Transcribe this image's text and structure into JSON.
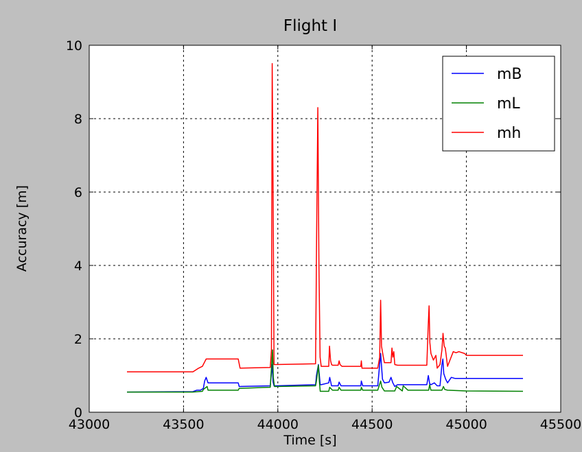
{
  "chart_data": {
    "type": "line",
    "title": "Flight I",
    "xlabel": "Time [s]",
    "ylabel": "Accuracy [m]",
    "xlim": [
      43000,
      45500
    ],
    "ylim": [
      0,
      10
    ],
    "xticks": [
      43000,
      43500,
      44000,
      44500,
      45000,
      45500
    ],
    "yticks": [
      0,
      2,
      4,
      6,
      8,
      10
    ],
    "grid": true,
    "legend_position": "top-right",
    "series": [
      {
        "name": "mB",
        "color": "#0000ff",
        "x": [
          43200,
          43550,
          43570,
          43590,
          43605,
          43612,
          43620,
          43630,
          43790,
          43795,
          43960,
          43970,
          43975,
          43980,
          43990,
          44200,
          44205,
          44215,
          44225,
          44230,
          44270,
          44275,
          44285,
          44320,
          44325,
          44335,
          44440,
          44443,
          44450,
          44530,
          44545,
          44555,
          44565,
          44590,
          44600,
          44610,
          44620,
          44635,
          44790,
          44798,
          44805,
          44812,
          44830,
          44845,
          44860,
          44870,
          44875,
          44880,
          44890,
          44900,
          44920,
          44940,
          44960,
          45000,
          45300
        ],
        "y": [
          0.55,
          0.56,
          0.6,
          0.6,
          0.65,
          0.85,
          0.95,
          0.8,
          0.8,
          0.7,
          0.72,
          1.3,
          0.82,
          0.72,
          0.72,
          0.75,
          1.0,
          1.3,
          0.75,
          0.75,
          0.8,
          0.95,
          0.72,
          0.72,
          0.82,
          0.72,
          0.72,
          0.85,
          0.72,
          0.72,
          1.6,
          0.9,
          0.8,
          0.82,
          0.95,
          0.8,
          0.7,
          0.75,
          0.75,
          1.0,
          0.78,
          0.75,
          0.8,
          0.72,
          0.72,
          1.3,
          1.45,
          1.05,
          0.9,
          0.8,
          0.95,
          0.92,
          0.92,
          0.92,
          0.92
        ]
      },
      {
        "name": "mL",
        "color": "#008000",
        "x": [
          43200,
          43550,
          43600,
          43605,
          43625,
          43630,
          43790,
          43795,
          43960,
          43972,
          43976,
          43982,
          43990,
          44200,
          44205,
          44215,
          44220,
          44225,
          44270,
          44275,
          44290,
          44320,
          44325,
          44335,
          44440,
          44443,
          44450,
          44530,
          44545,
          44552,
          44565,
          44620,
          44630,
          44660,
          44665,
          44690,
          44800,
          44805,
          44812,
          44870,
          44878,
          44885,
          44900,
          45000,
          45300
        ],
        "y": [
          0.55,
          0.55,
          0.57,
          0.62,
          0.7,
          0.6,
          0.6,
          0.65,
          0.68,
          1.7,
          0.95,
          0.7,
          0.7,
          0.72,
          0.85,
          1.28,
          0.85,
          0.57,
          0.57,
          0.68,
          0.6,
          0.6,
          0.68,
          0.6,
          0.6,
          0.68,
          0.6,
          0.6,
          0.85,
          0.68,
          0.58,
          0.58,
          0.7,
          0.58,
          0.72,
          0.6,
          0.6,
          0.75,
          0.6,
          0.6,
          0.7,
          0.62,
          0.6,
          0.58,
          0.57
        ]
      },
      {
        "name": "mh",
        "color": "#ff0000",
        "x": [
          43200,
          43550,
          43580,
          43600,
          43610,
          43620,
          43630,
          43790,
          43800,
          43960,
          43966,
          43970,
          43975,
          43980,
          43990,
          44200,
          44206,
          44212,
          44218,
          44224,
          44230,
          44270,
          44274,
          44280,
          44285,
          44290,
          44320,
          44325,
          44330,
          44340,
          44440,
          44443,
          44446,
          44450,
          44530,
          44540,
          44545,
          44550,
          44558,
          44565,
          44600,
          44605,
          44610,
          44615,
          44620,
          44635,
          44790,
          44797,
          44802,
          44806,
          44812,
          44825,
          44838,
          44845,
          44860,
          44870,
          44876,
          44882,
          44888,
          44900,
          44930,
          44945,
          44960,
          44990,
          45000,
          45300
        ],
        "y": [
          1.1,
          1.1,
          1.2,
          1.25,
          1.35,
          1.45,
          1.45,
          1.45,
          1.2,
          1.22,
          1.7,
          9.5,
          6.0,
          1.3,
          1.3,
          1.32,
          5.0,
          8.3,
          4.0,
          1.5,
          1.25,
          1.25,
          1.8,
          1.4,
          1.3,
          1.28,
          1.28,
          1.4,
          1.3,
          1.25,
          1.25,
          1.4,
          1.2,
          1.2,
          1.2,
          1.5,
          3.05,
          1.8,
          1.55,
          1.35,
          1.35,
          1.75,
          1.5,
          1.65,
          1.3,
          1.28,
          1.28,
          2.3,
          2.9,
          1.9,
          1.6,
          1.42,
          1.55,
          1.2,
          1.3,
          1.7,
          2.15,
          1.8,
          1.75,
          1.25,
          1.65,
          1.62,
          1.65,
          1.6,
          1.55,
          1.55
        ]
      }
    ]
  }
}
